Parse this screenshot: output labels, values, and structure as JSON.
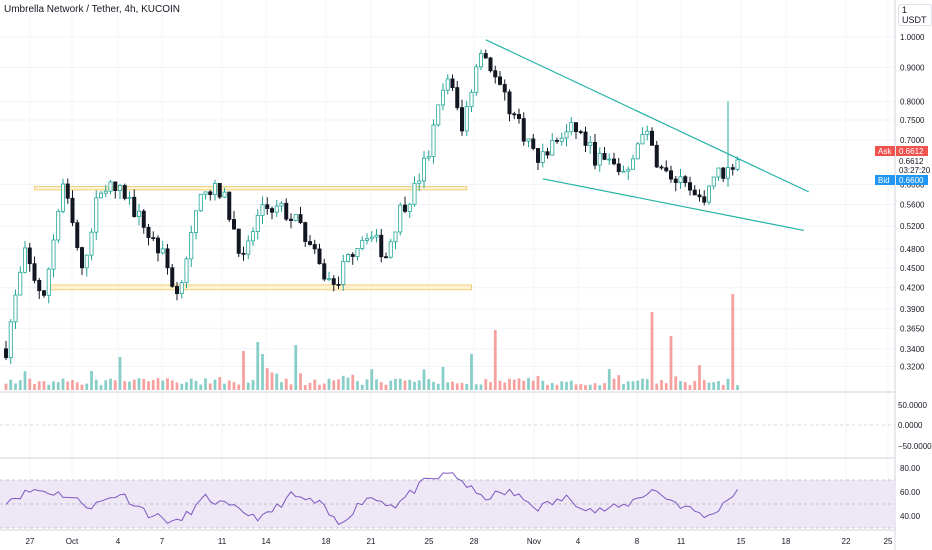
{
  "header": {
    "title": "Umbrella Network / Tether, 4h, KUCOIN",
    "unit": "1 USDT"
  },
  "colors": {
    "up": "#26a69a",
    "down": "#131722",
    "volume_up": "#26a69a",
    "volume_down": "#ef5350",
    "trendline": "#22b3a6",
    "zone_fill": "#fff3d6",
    "zone_border": "#f2cf7a",
    "rsi_line": "#7e57c2",
    "rsi_band": "#ede7f6",
    "ask": "#ef5350",
    "bid": "#2196f3"
  },
  "tags": {
    "ask_label": "Ask",
    "ask_value": "0.6612",
    "last_price": "0.6612",
    "countdown": "03:27:20",
    "bid_label": "Bid",
    "bid_value": "0.6600"
  },
  "chart_data": {
    "type": "candlestick",
    "price_axis_ticks": [
      "1.0000",
      "0.9000",
      "0.8000",
      "0.7500",
      "0.7000",
      "0.6000",
      "0.5600",
      "0.5200",
      "0.4800",
      "0.4500",
      "0.4200",
      "0.3900",
      "0.3650",
      "0.3400",
      "0.3200"
    ],
    "price_scale": "log",
    "price_range": [
      0.3,
      1.06
    ],
    "x_axis_ticks": [
      "27",
      "Oct",
      "4",
      "7",
      "11",
      "14",
      "18",
      "21",
      "25",
      "28",
      "Nov",
      "4",
      "8",
      "11",
      "15",
      "18",
      "22",
      "25"
    ],
    "price_path": [
      [
        0,
        0.34
      ],
      [
        4,
        0.47
      ],
      [
        8,
        0.4
      ],
      [
        12,
        0.6
      ],
      [
        16,
        0.44
      ],
      [
        20,
        0.6
      ],
      [
        25,
        0.58
      ],
      [
        29,
        0.52
      ],
      [
        33,
        0.47
      ],
      [
        36,
        0.41
      ],
      [
        39,
        0.5
      ],
      [
        42,
        0.6
      ],
      [
        46,
        0.57
      ],
      [
        50,
        0.46
      ],
      [
        54,
        0.56
      ],
      [
        58,
        0.55
      ],
      [
        62,
        0.52
      ],
      [
        66,
        0.45
      ],
      [
        69,
        0.42
      ],
      [
        73,
        0.48
      ],
      [
        76,
        0.51
      ],
      [
        80,
        0.47
      ],
      [
        83,
        0.55
      ],
      [
        86,
        0.59
      ],
      [
        89,
        0.67
      ],
      [
        93,
        0.88
      ],
      [
        96,
        0.72
      ],
      [
        100,
        0.97
      ],
      [
        104,
        0.83
      ],
      [
        108,
        0.74
      ],
      [
        112,
        0.65
      ],
      [
        116,
        0.7
      ],
      [
        120,
        0.73
      ],
      [
        124,
        0.66
      ],
      [
        128,
        0.64
      ],
      [
        131,
        0.62
      ],
      [
        134,
        0.73
      ],
      [
        138,
        0.63
      ],
      [
        142,
        0.6
      ],
      [
        146,
        0.56
      ],
      [
        149,
        0.62
      ],
      [
        152,
        0.63
      ],
      [
        154,
        0.6612
      ]
    ],
    "trendlines": [
      {
        "from": [
          101,
          0.99
        ],
        "to": [
          169,
          0.585
        ]
      },
      {
        "from": [
          113,
          0.612
        ],
        "to": [
          168,
          0.512
        ]
      }
    ],
    "zones": [
      {
        "x_range": [
          6,
          97
        ],
        "price_range": [
          0.589,
          0.596
        ]
      },
      {
        "x_range": [
          9,
          98
        ],
        "price_range": [
          0.417,
          0.424
        ]
      }
    ],
    "volume_spikes": [
      [
        24,
        0.55
      ],
      [
        50,
        0.65
      ],
      [
        53,
        0.8
      ],
      [
        54,
        0.6
      ],
      [
        61,
        0.75
      ],
      [
        98,
        0.6
      ],
      [
        103,
        1.0
      ],
      [
        136,
        1.3
      ],
      [
        140,
        0.9
      ],
      [
        153,
        1.6
      ]
    ],
    "oscillator_ticks": [
      "50.0000",
      "0.0000",
      "−50.0000"
    ],
    "rsi_ticks": [
      "80.00",
      "60.00",
      "40.00"
    ],
    "rsi_range": [
      30,
      85
    ],
    "rsi_band": [
      30,
      70
    ],
    "rsi_path": [
      [
        0,
        53
      ],
      [
        6,
        62
      ],
      [
        12,
        58
      ],
      [
        18,
        48
      ],
      [
        24,
        59
      ],
      [
        30,
        42
      ],
      [
        36,
        34
      ],
      [
        42,
        55
      ],
      [
        48,
        46
      ],
      [
        54,
        38
      ],
      [
        60,
        57
      ],
      [
        66,
        50
      ],
      [
        70,
        33
      ],
      [
        76,
        56
      ],
      [
        82,
        49
      ],
      [
        88,
        68
      ],
      [
        94,
        76
      ],
      [
        100,
        55
      ],
      [
        106,
        60
      ],
      [
        112,
        47
      ],
      [
        118,
        55
      ],
      [
        124,
        44
      ],
      [
        130,
        48
      ],
      [
        136,
        62
      ],
      [
        142,
        49
      ],
      [
        148,
        39
      ],
      [
        154,
        62
      ]
    ]
  }
}
